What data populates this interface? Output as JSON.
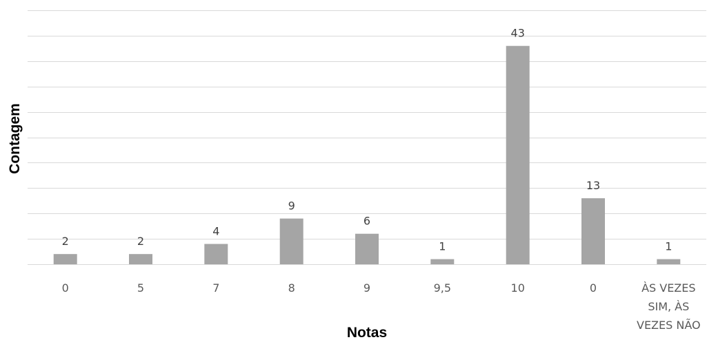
{
  "chart_data": {
    "type": "bar",
    "title": "",
    "xlabel": "Notas",
    "ylabel": "Contagem",
    "categories": [
      "0",
      "5",
      "7",
      "8",
      "9",
      "9,5",
      "10",
      "0",
      "ÀS VEZES SIM, ÀS VEZES NÃO"
    ],
    "category_lines": [
      [
        "0"
      ],
      [
        "5"
      ],
      [
        "7"
      ],
      [
        "8"
      ],
      [
        "9"
      ],
      [
        "9,5"
      ],
      [
        "10"
      ],
      [
        "0"
      ],
      [
        "ÀS VEZES",
        "SIM, ÀS",
        "VEZES NÃO"
      ]
    ],
    "values": [
      2,
      2,
      4,
      9,
      6,
      1,
      43,
      13,
      1
    ],
    "data_labels": [
      "2",
      "2",
      "4",
      "9",
      "6",
      "1",
      "43",
      "13",
      "1"
    ],
    "ylim": [
      0,
      50
    ],
    "grid": true,
    "legend": "none",
    "bar_color": "#a5a5a5",
    "grid_color": "#d9d9d9"
  }
}
